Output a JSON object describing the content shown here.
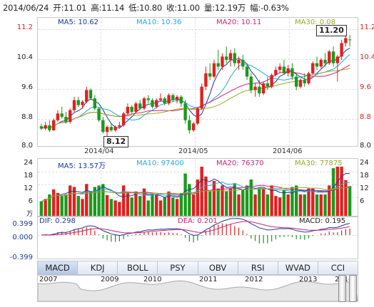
{
  "header": {
    "date": "2014/06/24",
    "open": "开:11.01",
    "high": "高:11.14",
    "low": "低:10.80",
    "close": "收:11.00",
    "volume": "量:12.19万",
    "change": "幅:-0.63%"
  },
  "price_panel": {
    "ma5": "MA5: 10.62",
    "ma10": "MA10: 10.36",
    "ma20": "MA20: 10.11",
    "ma30": "MA30: 0.08",
    "y_ticks": [
      "11.2",
      "10.4",
      "9.6",
      "8.8",
      "8.0"
    ],
    "x_labels": [
      "2014/04",
      "2014/05",
      "2014/06"
    ],
    "max_label": "11.20",
    "min_label": "8.12"
  },
  "volume_panel": {
    "ma5": "MA5: 13.57万",
    "ma10": "MA10: 97400",
    "ma20": "MA20: 76370",
    "ma30": "MA30: 77875",
    "unit": "万",
    "y_ticks": [
      "24",
      "18",
      "12",
      "6"
    ]
  },
  "macd_panel": {
    "dif": "DIF: 0.298",
    "dea": "DEA: 0.201",
    "macd": "MACD: 0.195",
    "y_ticks": [
      "0.399",
      "0.000",
      "-0.399"
    ]
  },
  "tabs": [
    "MACD",
    "KDJ",
    "BOLL",
    "PSY",
    "OBV",
    "RSI",
    "WVAD",
    "CCI"
  ],
  "active_tab": "MACD",
  "navigator": {
    "years": [
      "2007",
      "2009",
      "2010",
      "2011",
      "2012",
      "2013",
      "2014"
    ]
  },
  "colors": {
    "up": "#e02020",
    "down": "#1a9a1a",
    "ma5": "#1a3a9a",
    "ma10": "#22aadd",
    "ma20": "#cc2277",
    "ma30": "#99aa22"
  },
  "chart_data": {
    "type": "candlestick",
    "ohlc": [
      [
        8.42,
        8.5,
        8.35,
        8.3
      ],
      [
        8.35,
        8.55,
        8.45,
        8.3
      ],
      [
        8.45,
        8.6,
        8.3,
        8.25
      ],
      [
        8.3,
        8.65,
        8.6,
        8.28
      ],
      [
        8.6,
        8.9,
        8.8,
        8.55
      ],
      [
        8.8,
        9.0,
        8.7,
        8.65
      ],
      [
        8.7,
        8.85,
        8.55,
        8.5
      ],
      [
        8.55,
        8.95,
        8.9,
        8.5
      ],
      [
        8.9,
        9.3,
        9.2,
        8.85
      ],
      [
        9.2,
        9.3,
        9.05,
        9.0
      ],
      [
        9.05,
        9.2,
        9.15,
        8.95
      ],
      [
        9.15,
        9.6,
        9.5,
        9.1
      ],
      [
        9.5,
        9.55,
        9.25,
        9.2
      ],
      [
        9.25,
        9.35,
        8.95,
        8.9
      ],
      [
        8.95,
        9.0,
        8.6,
        8.55
      ],
      [
        8.6,
        8.7,
        8.25,
        8.2
      ],
      [
        8.25,
        8.45,
        8.4,
        8.12
      ],
      [
        8.4,
        8.5,
        8.3,
        8.25
      ],
      [
        8.3,
        8.45,
        8.4,
        8.25
      ],
      [
        8.4,
        8.55,
        8.45,
        8.35
      ],
      [
        8.45,
        8.85,
        8.8,
        8.4
      ],
      [
        8.8,
        9.1,
        9.0,
        8.75
      ],
      [
        9.0,
        9.05,
        8.85,
        8.8
      ],
      [
        8.85,
        9.15,
        9.1,
        8.8
      ],
      [
        9.1,
        9.2,
        8.95,
        8.9
      ],
      [
        8.95,
        9.3,
        9.25,
        8.9
      ],
      [
        9.25,
        9.35,
        9.2,
        9.1
      ],
      [
        9.2,
        9.25,
        9.0,
        8.95
      ],
      [
        9.0,
        9.25,
        9.2,
        8.95
      ],
      [
        9.2,
        9.4,
        9.25,
        9.15
      ],
      [
        9.25,
        9.3,
        9.1,
        9.05
      ],
      [
        9.1,
        9.4,
        9.35,
        9.05
      ],
      [
        9.35,
        9.4,
        9.2,
        9.15
      ],
      [
        9.2,
        9.35,
        9.3,
        9.1
      ],
      [
        9.3,
        9.35,
        9.1,
        9.0
      ],
      [
        9.1,
        9.2,
        8.6,
        8.5
      ],
      [
        8.6,
        8.75,
        8.3,
        8.2
      ],
      [
        8.3,
        8.55,
        8.5,
        8.25
      ],
      [
        8.5,
        9.0,
        8.95,
        8.45
      ],
      [
        8.95,
        9.7,
        9.6,
        8.9
      ],
      [
        9.6,
        10.2,
        10.0,
        9.5
      ],
      [
        10.0,
        10.3,
        9.9,
        9.8
      ],
      [
        9.9,
        10.4,
        10.3,
        9.85
      ],
      [
        10.3,
        10.7,
        10.2,
        10.1
      ],
      [
        10.2,
        10.6,
        10.5,
        10.1
      ],
      [
        10.5,
        10.8,
        10.4,
        10.3
      ],
      [
        10.4,
        10.7,
        10.6,
        10.2
      ],
      [
        10.6,
        10.75,
        10.3,
        10.2
      ],
      [
        10.3,
        10.5,
        10.4,
        10.1
      ],
      [
        10.4,
        10.55,
        10.2,
        10.1
      ],
      [
        10.2,
        10.3,
        9.9,
        9.8
      ],
      [
        9.9,
        10.0,
        9.5,
        9.4
      ],
      [
        9.5,
        9.7,
        9.6,
        9.3
      ],
      [
        9.6,
        9.8,
        9.4,
        9.3
      ],
      [
        9.4,
        9.75,
        9.7,
        9.35
      ],
      [
        9.7,
        9.9,
        9.6,
        9.5
      ],
      [
        9.6,
        10.0,
        9.95,
        9.55
      ],
      [
        9.95,
        10.2,
        10.1,
        9.9
      ],
      [
        10.1,
        10.3,
        10.2,
        10.0
      ],
      [
        10.2,
        10.4,
        10.0,
        9.95
      ],
      [
        10.0,
        10.25,
        10.15,
        9.9
      ],
      [
        10.15,
        10.3,
        9.9,
        9.8
      ],
      [
        9.9,
        10.0,
        9.6,
        9.5
      ],
      [
        9.6,
        9.85,
        9.8,
        9.55
      ],
      [
        9.8,
        10.0,
        9.7,
        9.6
      ],
      [
        9.7,
        10.05,
        10.0,
        9.65
      ],
      [
        10.0,
        10.35,
        10.3,
        9.95
      ],
      [
        10.3,
        10.5,
        10.2,
        10.1
      ],
      [
        10.2,
        10.45,
        10.4,
        10.15
      ],
      [
        10.4,
        10.6,
        10.3,
        10.2
      ],
      [
        10.3,
        10.7,
        10.65,
        10.25
      ],
      [
        10.65,
        10.8,
        10.3,
        10.2
      ],
      [
        10.3,
        10.55,
        10.5,
        9.75
      ],
      [
        10.5,
        11.0,
        10.9,
        10.4
      ],
      [
        10.9,
        11.2,
        11.05,
        10.8
      ],
      [
        11.01,
        11.14,
        11.0,
        10.8
      ]
    ],
    "volume_unit": "万",
    "volume_max": 24,
    "price_range": [
      8.0,
      11.4
    ],
    "macd_range": [
      -0.399,
      0.399
    ]
  }
}
